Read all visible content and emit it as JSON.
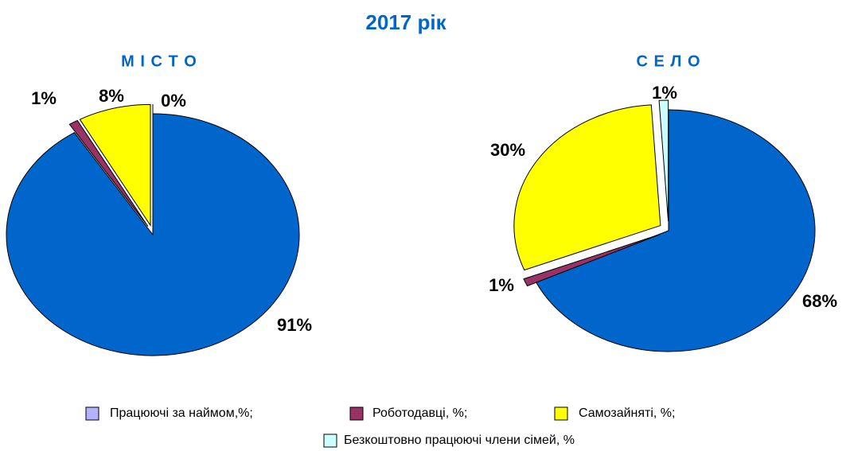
{
  "title": "2017 рік",
  "legend": {
    "categories": [
      "Працюючі за наймом,%;",
      "Роботодавці, %;",
      "Самозайняті, %;",
      "Безкоштовно працюючі члени сімей, %"
    ],
    "colors": [
      "#b3b3ff",
      "#993366",
      "#ffff00",
      "#ccffff"
    ]
  },
  "chart_data": [
    {
      "type": "pie",
      "title": "М І С Т О",
      "values": [
        91,
        1,
        8,
        0
      ],
      "value_labels": [
        "91%",
        "1%",
        "8%",
        "0%"
      ],
      "colors": [
        "#0066cc",
        "#993366",
        "#ffff00",
        "#ccffff"
      ]
    },
    {
      "type": "pie",
      "title": "С Е Л О",
      "values": [
        68,
        1,
        30,
        1
      ],
      "value_labels": [
        "68%",
        "1%",
        "30%",
        "1%"
      ],
      "colors": [
        "#0066cc",
        "#993366",
        "#ffff00",
        "#ccffff"
      ]
    }
  ]
}
